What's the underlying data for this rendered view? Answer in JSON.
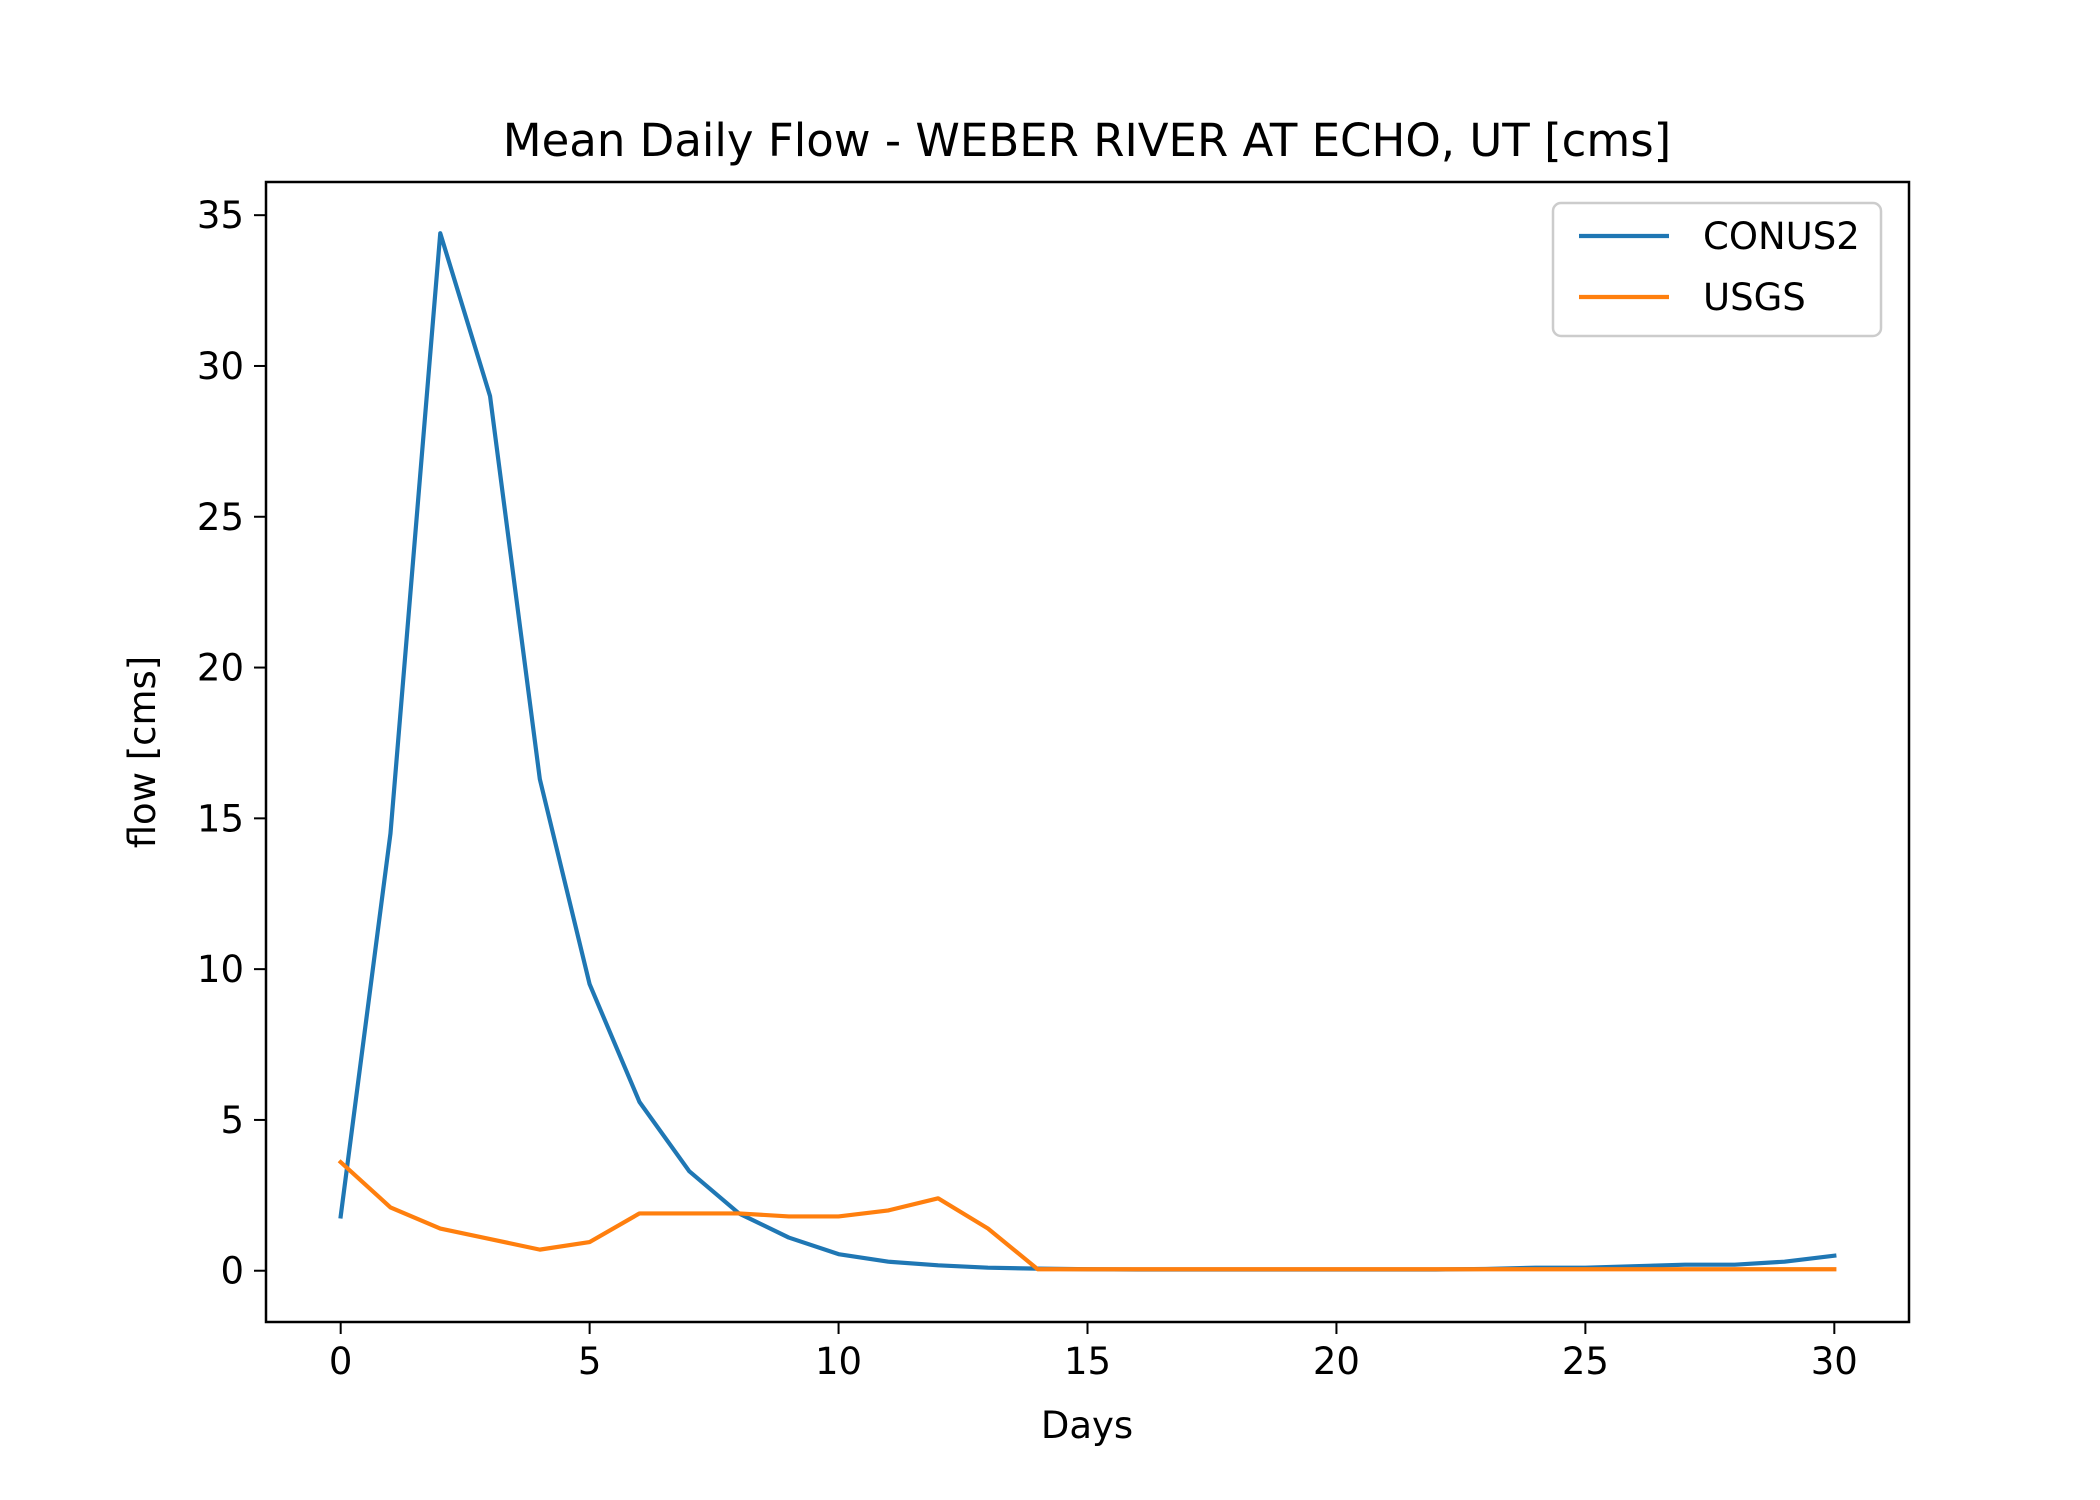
{
  "chart_data": {
    "type": "line",
    "title": "Mean Daily Flow - WEBER RIVER AT ECHO, UT [cms]",
    "xlabel": "Days",
    "ylabel": "flow [cms]",
    "xlim": [
      -1.5,
      31.5
    ],
    "ylim": [
      -1.7,
      36.1
    ],
    "xticks": [
      0,
      5,
      10,
      15,
      20,
      25,
      30
    ],
    "yticks": [
      0,
      5,
      10,
      15,
      20,
      25,
      30,
      35
    ],
    "grid": false,
    "legend": {
      "position": "upper right"
    },
    "x": [
      0,
      1,
      2,
      3,
      4,
      5,
      6,
      7,
      8,
      9,
      10,
      11,
      12,
      13,
      14,
      15,
      16,
      17,
      18,
      19,
      20,
      21,
      22,
      23,
      24,
      25,
      26,
      27,
      28,
      29,
      30
    ],
    "series": [
      {
        "name": "CONUS2",
        "color": "#1f77b4",
        "values": [
          1.8,
          14.5,
          34.4,
          29.0,
          16.3,
          9.5,
          5.6,
          3.3,
          1.9,
          1.1,
          0.55,
          0.3,
          0.18,
          0.1,
          0.07,
          0.05,
          0.04,
          0.04,
          0.04,
          0.04,
          0.04,
          0.04,
          0.04,
          0.06,
          0.1,
          0.1,
          0.15,
          0.2,
          0.2,
          0.3,
          0.5
        ]
      },
      {
        "name": "USGS",
        "color": "#ff7f0e",
        "values": [
          3.6,
          2.1,
          1.4,
          1.05,
          0.7,
          0.95,
          1.9,
          1.9,
          1.9,
          1.8,
          1.8,
          2.0,
          2.4,
          1.4,
          0.05,
          0.05,
          0.05,
          0.05,
          0.05,
          0.05,
          0.05,
          0.05,
          0.05,
          0.05,
          0.05,
          0.05,
          0.05,
          0.05,
          0.05,
          0.05,
          0.05
        ]
      }
    ]
  }
}
